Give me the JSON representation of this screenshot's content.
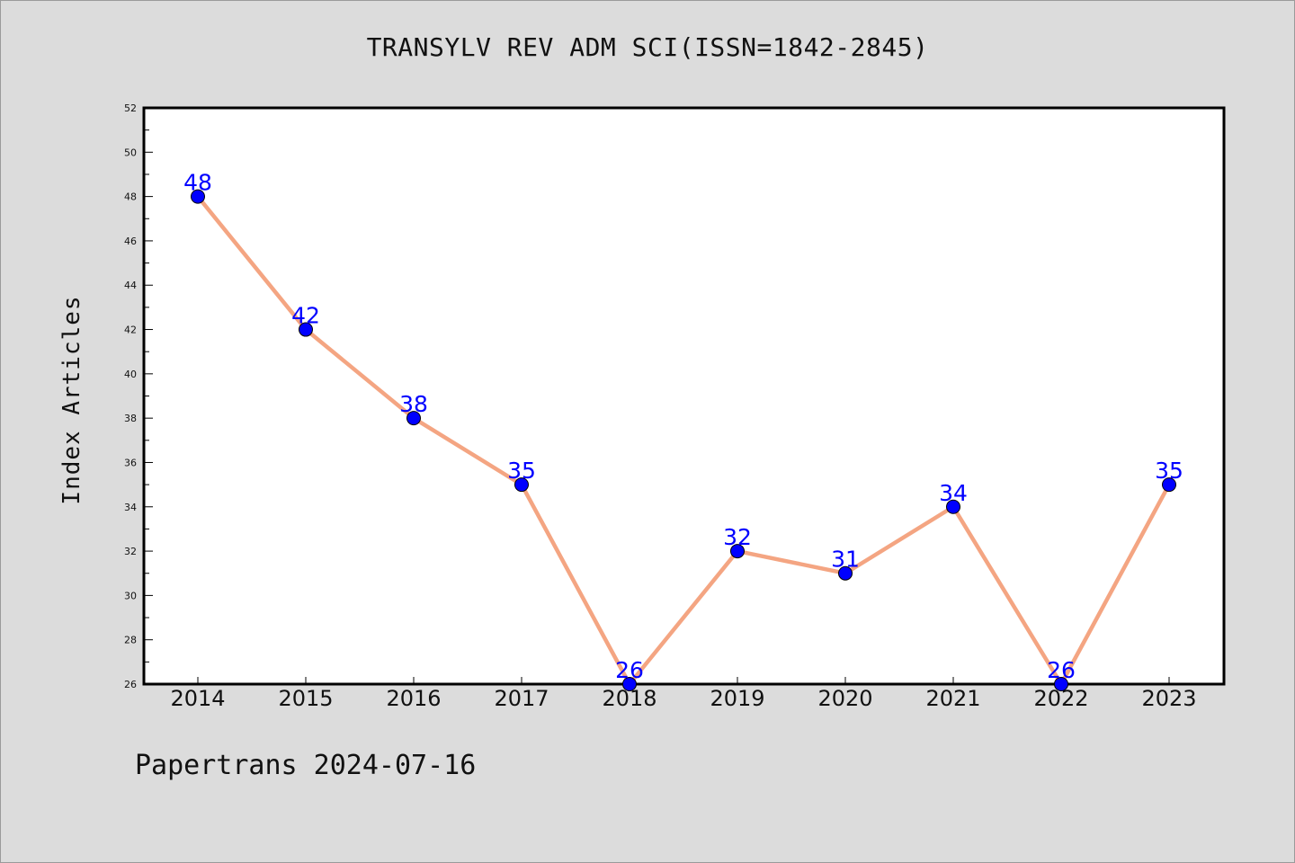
{
  "chart_data": {
    "type": "line",
    "title": "TRANSYLV REV ADM SCI(ISSN=1842-2845)",
    "xlabel": "",
    "ylabel": "Index Articles",
    "categories": [
      "2014",
      "2015",
      "2016",
      "2017",
      "2018",
      "2019",
      "2020",
      "2021",
      "2022",
      "2023"
    ],
    "series": [
      {
        "values": [
          48,
          42,
          38,
          35,
          26,
          32,
          31,
          34,
          26,
          35
        ]
      }
    ],
    "ylim": [
      26,
      52
    ],
    "yticks": [
      26,
      28,
      30,
      32,
      34,
      36,
      38,
      40,
      42,
      44,
      46,
      48,
      50,
      52
    ],
    "grid": false,
    "legend": "none",
    "data_labels": true
  },
  "footer": {
    "text": "Papertrans 2024-07-16"
  },
  "colors": {
    "background": "#dcdcdc",
    "plot_background": "#ffffff",
    "line": "#f4a582",
    "marker": "#0000ff",
    "data_label": "#0000ff"
  }
}
